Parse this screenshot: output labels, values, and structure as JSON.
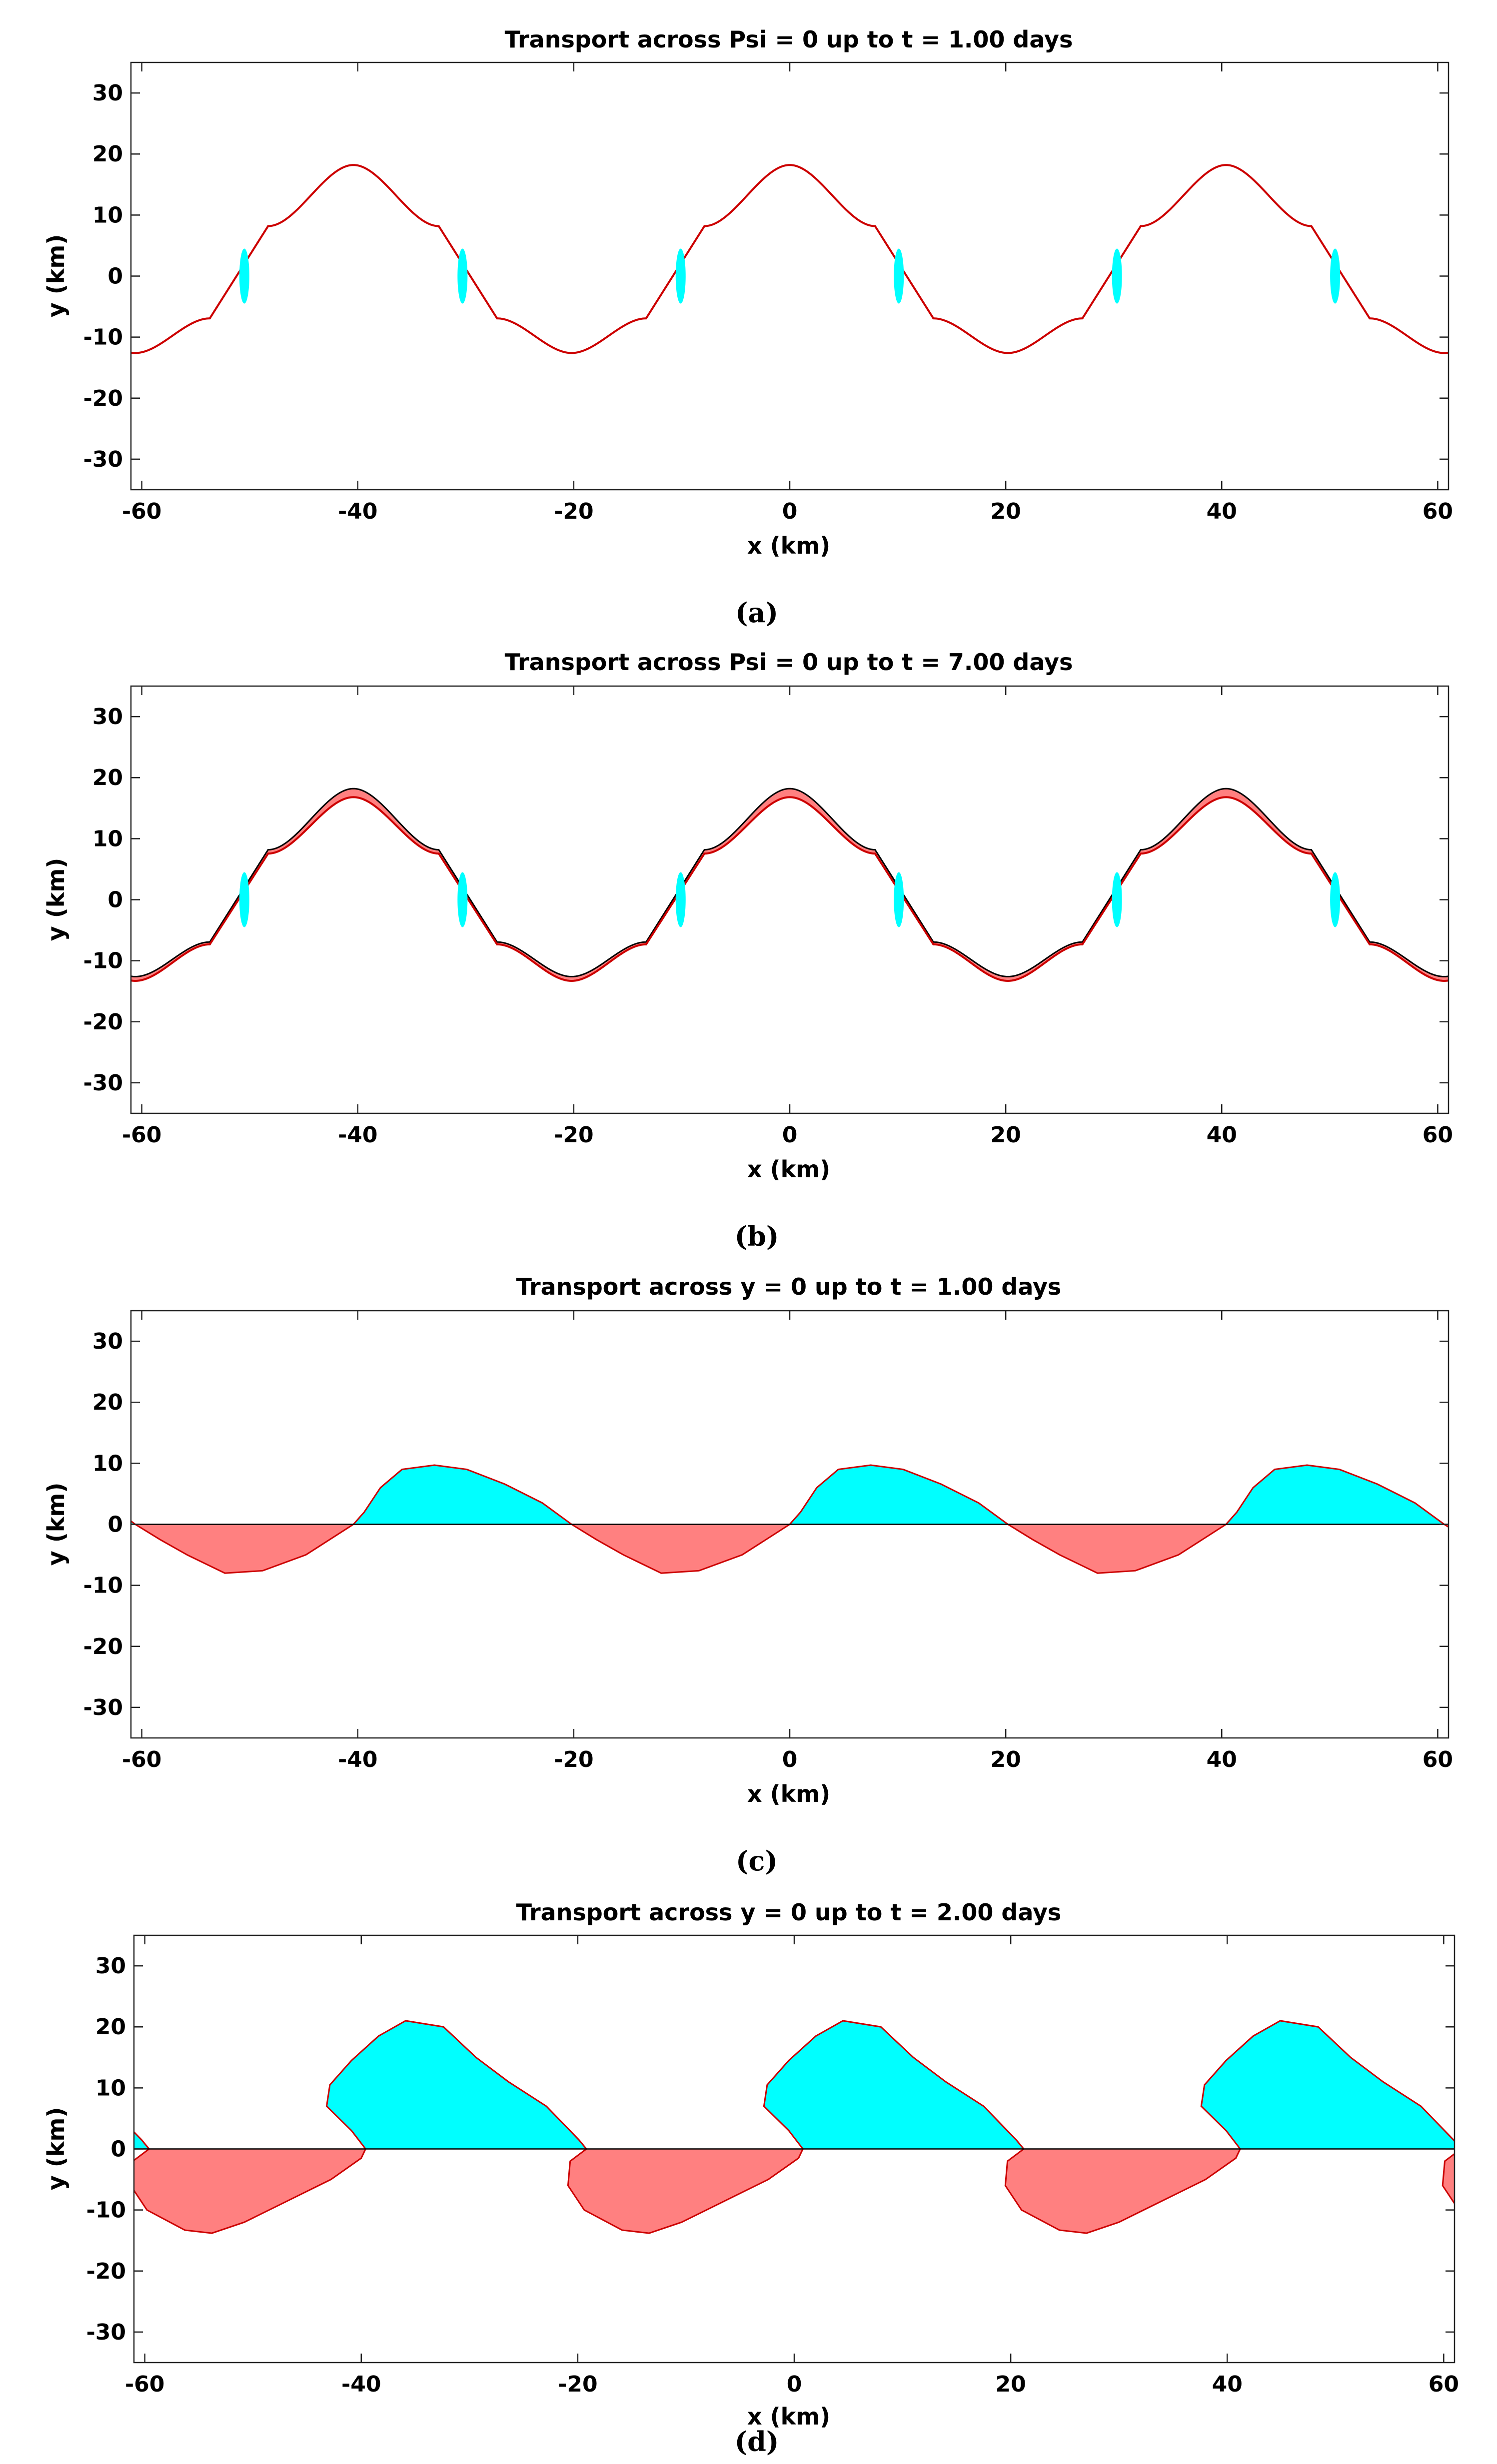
{
  "colors": {
    "positive": "#00ffff",
    "negative": "#ff8080",
    "curve": "#cc0000",
    "reference": "#000000"
  },
  "chart_data": [
    {
      "type": "area",
      "panel": "a",
      "caption": "(a)",
      "title": "Transport across Psi = 0 up to t = 1.00 days",
      "xlabel": "x (km)",
      "ylabel": "y (km)",
      "xlim": [
        -61,
        61
      ],
      "ylim": [
        -35,
        35
      ],
      "xticks": [
        "-60",
        "-40",
        "-20",
        "0",
        "20",
        "40",
        "60"
      ],
      "yticks": [
        "30",
        "20",
        "10",
        "0",
        "-10",
        "-20",
        "-30"
      ],
      "kind": "meander",
      "period_km": 40.4,
      "reference_curve": {
        "crest_y": 18.2,
        "trough_y": -12.6
      },
      "transported_curve": {
        "crest_y": 18.2,
        "trough_y": -12.6
      },
      "lobe_strength": 1.0
    },
    {
      "type": "area",
      "panel": "b",
      "caption": "(b)",
      "title": "Transport across Psi = 0 up to t = 7.00 days",
      "xlabel": "x (km)",
      "ylabel": "y (km)",
      "xlim": [
        -61,
        61
      ],
      "ylim": [
        -35,
        35
      ],
      "xticks": [
        "-60",
        "-40",
        "-20",
        "0",
        "20",
        "40",
        "60"
      ],
      "yticks": [
        "30",
        "20",
        "10",
        "0",
        "-10",
        "-20",
        "-30"
      ],
      "kind": "meander",
      "period_km": 40.4,
      "reference_curve": {
        "crest_y": 18.2,
        "trough_y": -12.6
      },
      "transported_curve": {
        "crest_y": 16.8,
        "trough_y": -13.3
      },
      "lobe_strength": 1.0
    },
    {
      "type": "area",
      "panel": "c",
      "caption": "(c)",
      "title": "Transport across y = 0 up to t = 1.00 days",
      "xlabel": "x (km)",
      "ylabel": "y (km)",
      "xlim": [
        -61,
        61
      ],
      "ylim": [
        -35,
        35
      ],
      "xticks": [
        "-60",
        "-40",
        "-20",
        "0",
        "20",
        "40",
        "60"
      ],
      "yticks": [
        "30",
        "20",
        "10",
        "0",
        "-10",
        "-20",
        "-30"
      ],
      "kind": "lobes",
      "period_km": 40.4,
      "reference_line_y": 0,
      "curve_points": [
        [
          0,
          0
        ],
        [
          1,
          2
        ],
        [
          2.5,
          6
        ],
        [
          4.5,
          9
        ],
        [
          7.5,
          9.7
        ],
        [
          10.5,
          9
        ],
        [
          14,
          6.6
        ],
        [
          17.5,
          3.5
        ],
        [
          20.2,
          0
        ],
        [
          22.5,
          -2.5
        ],
        [
          25,
          -5
        ],
        [
          28.5,
          -8
        ],
        [
          32,
          -7.6
        ],
        [
          36,
          -5
        ],
        [
          40.4,
          0
        ]
      ]
    },
    {
      "type": "area",
      "panel": "d",
      "caption": "(d)",
      "title": "Transport across y = 0 up to t = 2.00 days",
      "xlabel": "x (km)",
      "ylabel": "y (km)",
      "xlim": [
        -61,
        61
      ],
      "ylim": [
        -35,
        35
      ],
      "xticks": [
        "-60",
        "-40",
        "-20",
        "0",
        "20",
        "40",
        "60"
      ],
      "yticks": [
        "30",
        "20",
        "10",
        "0",
        "-10",
        "-20",
        "-30"
      ],
      "kind": "lobes",
      "period_km": 40.4,
      "reference_line_y": 0,
      "curve_points": [
        [
          0.8,
          0
        ],
        [
          -0.5,
          3
        ],
        [
          -2.8,
          7
        ],
        [
          -2.5,
          10.5
        ],
        [
          -0.5,
          14.5
        ],
        [
          2,
          18.5
        ],
        [
          4.5,
          21
        ],
        [
          8,
          20
        ],
        [
          11,
          15
        ],
        [
          14,
          11
        ],
        [
          17.5,
          7
        ],
        [
          20.5,
          1.5
        ],
        [
          21.2,
          0
        ],
        [
          19.7,
          -2
        ],
        [
          19.5,
          -6
        ],
        [
          21,
          -10
        ],
        [
          24.5,
          -13.3
        ],
        [
          27,
          -13.8
        ],
        [
          30,
          -12
        ],
        [
          34,
          -8.5
        ],
        [
          38,
          -5
        ],
        [
          40.8,
          -1.5
        ],
        [
          41.2,
          0
        ]
      ]
    }
  ]
}
